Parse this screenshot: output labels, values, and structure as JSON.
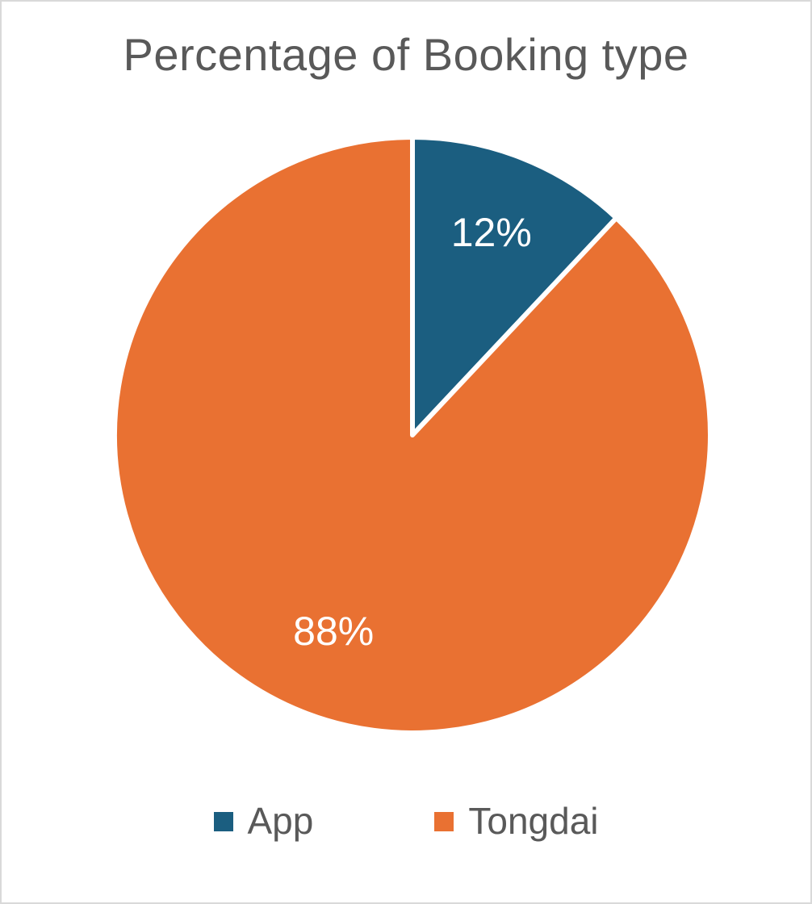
{
  "chart_data": {
    "type": "pie",
    "title": "Percentage of Booking type",
    "categories": [
      "App",
      "Tongdai"
    ],
    "values": [
      12,
      88
    ],
    "labels": [
      "12%",
      "88%"
    ],
    "colors": [
      "#1b5e80",
      "#e97132"
    ],
    "legend_position": "bottom"
  }
}
